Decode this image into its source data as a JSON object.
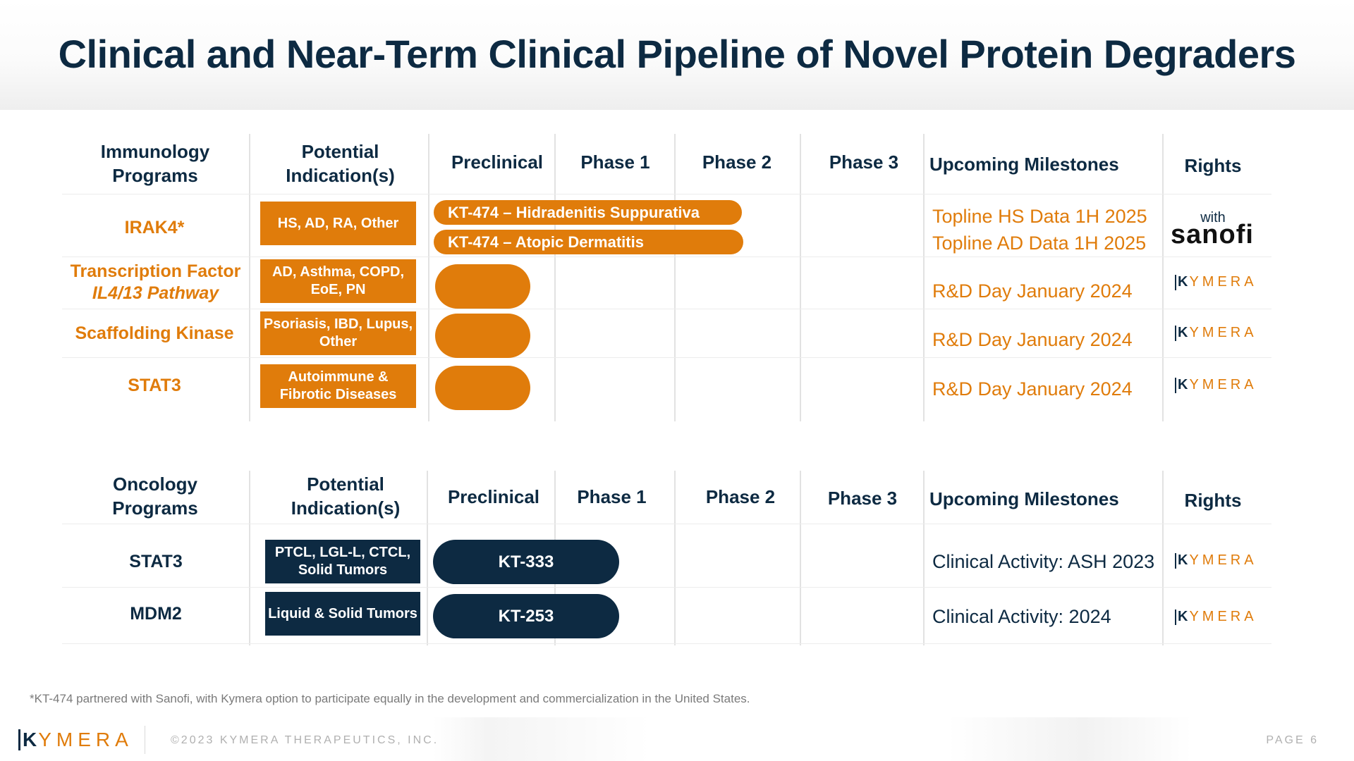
{
  "title": "Clinical and Near-Term Clinical Pipeline of Novel Protein Degraders",
  "headers": {
    "immunology_programs": "Immunology Programs",
    "oncology_programs": "Oncology Programs",
    "indication": "Potential Indication(s)",
    "preclinical": "Preclinical",
    "phase1": "Phase 1",
    "phase2": "Phase 2",
    "phase3": "Phase 3",
    "milestones": "Upcoming Milestones",
    "rights": "Rights"
  },
  "immunology": {
    "irak4": {
      "program": "IRAK4*",
      "indication": "HS, AD, RA, Other",
      "bar1": "KT-474 – Hidradenitis Suppurativa",
      "bar2": "KT-474 – Atopic Dermatitis",
      "milestone1": "Topline HS Data 1H 2025",
      "milestone2": "Topline AD Data 1H 2025",
      "rights_with": "with",
      "rights_partner": "sanofi"
    },
    "tf": {
      "program_line1": "Transcription Factor",
      "program_line2": "IL4/13 Pathway",
      "indication": "AD, Asthma, COPD, EoE, PN",
      "milestone": "R&D Day January 2024"
    },
    "sk": {
      "program": "Scaffolding Kinase",
      "indication": "Psoriasis, IBD, Lupus, Other",
      "milestone": "R&D Day January 2024"
    },
    "stat3": {
      "program": "STAT3",
      "indication": "Autoimmune & Fibrotic Diseases",
      "milestone": "R&D Day January 2024"
    }
  },
  "oncology": {
    "stat3": {
      "program": "STAT3",
      "indication": "PTCL, LGL-L, CTCL, Solid Tumors",
      "bar": "KT-333",
      "milestone": "Clinical Activity: ASH 2023"
    },
    "mdm2": {
      "program": "MDM2",
      "indication": "Liquid & Solid Tumors",
      "bar": "KT-253",
      "milestone": "Clinical Activity: 2024"
    }
  },
  "kymera_logo": {
    "k": "K",
    "rest": "YMERA"
  },
  "footnote": "*KT-474 partnered with Sanofi, with Kymera option to participate equally in the development and commercialization in the United States.",
  "footer": {
    "copyright": "©2023 KYMERA THERAPEUTICS, INC.",
    "page": "PAGE 6"
  },
  "colors": {
    "orange": "#e07c0b",
    "navy": "#0d2a42",
    "sanofi_purple": "#7a00e6"
  }
}
